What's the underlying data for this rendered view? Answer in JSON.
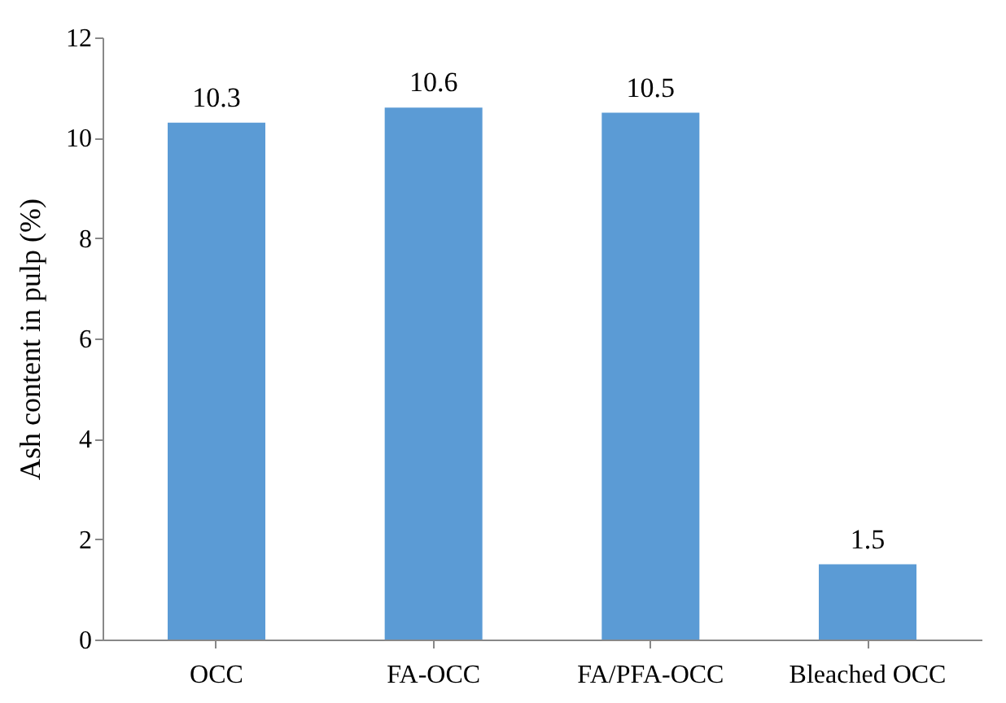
{
  "chart_data": {
    "type": "bar",
    "ylabel": "Ash content in pulp (%)",
    "categories": [
      "OCC",
      "FA-OCC",
      "FA/PFA-OCC",
      "Bleached OCC"
    ],
    "values": [
      10.3,
      10.6,
      10.5,
      1.5
    ],
    "color": "#5b9bd5",
    "ylim": [
      0,
      12
    ],
    "yticks": [
      0,
      2,
      4,
      6,
      8,
      10,
      12
    ],
    "grid": false,
    "data_labels": true
  }
}
